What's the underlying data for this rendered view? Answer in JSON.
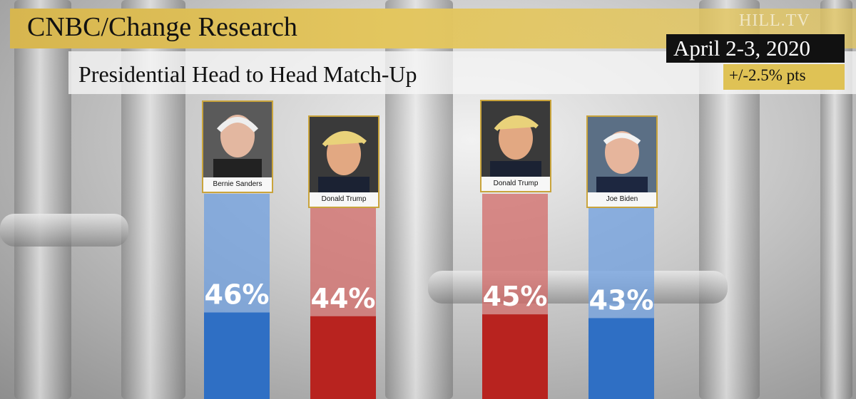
{
  "header": {
    "title": "CNBC/Change Research",
    "subtitle": "Presidential Head to Head Match-Up",
    "date": "April 2-3, 2020",
    "margin_of_error": "+/-2.5% pts",
    "watermark": "HILL.TV"
  },
  "colors": {
    "democrat": "#2f6fc4",
    "republican": "#b8231f",
    "gold": "#d7b64f"
  },
  "chart_data": {
    "type": "bar",
    "categories": [
      "Bernie Sanders",
      "Donald Trump",
      "Donald Trump",
      "Joe Biden"
    ],
    "values": [
      46,
      44,
      45,
      43
    ],
    "labels": [
      "46%",
      "44%",
      "45%",
      "43%"
    ],
    "parties": [
      "democrat",
      "republican",
      "republican",
      "democrat"
    ],
    "ylim": [
      0,
      100
    ],
    "title": "",
    "xlabel": "",
    "ylabel": ""
  }
}
